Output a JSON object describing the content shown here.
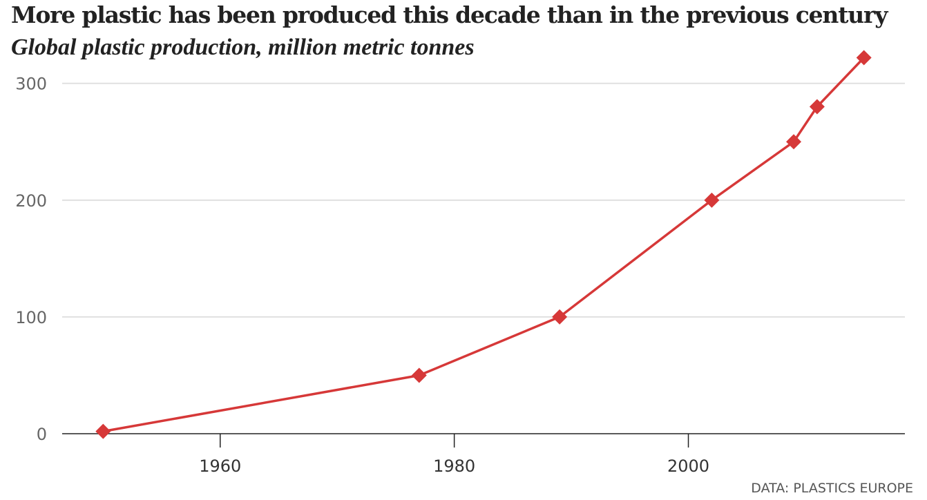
{
  "chart_data": {
    "type": "line",
    "title": "More plastic has been produced this decade than in the previous century",
    "subtitle": "Global plastic production, million metric tonnes",
    "source": "DATA: PLASTICS EUROPE",
    "xlabel": "",
    "ylabel": "",
    "xlim": [
      1946.5,
      2018.5
    ],
    "ylim": [
      0,
      330
    ],
    "x_ticks": [
      1960,
      1980,
      2000
    ],
    "y_ticks": [
      0,
      100,
      200,
      300
    ],
    "grid": "horizontal",
    "series": [
      {
        "color": "#d63838",
        "marker": "diamond",
        "points": [
          {
            "x": 1950,
            "y": 2
          },
          {
            "x": 1977,
            "y": 50
          },
          {
            "x": 1989,
            "y": 100
          },
          {
            "x": 2002,
            "y": 200
          },
          {
            "x": 2009,
            "y": 250
          },
          {
            "x": 2011,
            "y": 280
          },
          {
            "x": 2015,
            "y": 322
          }
        ]
      }
    ]
  }
}
